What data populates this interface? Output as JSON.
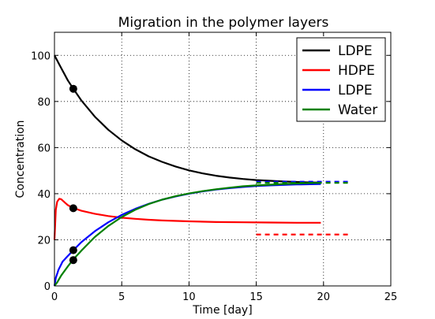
{
  "chart_data": {
    "type": "line",
    "title": "Migration in the polymer layers",
    "xlabel": "Time [day]",
    "ylabel": "Concentration",
    "xlim": [
      0,
      25
    ],
    "ylim": [
      0,
      110
    ],
    "xticks": [
      0,
      5,
      10,
      15,
      20,
      25
    ],
    "yticks": [
      0,
      20,
      40,
      60,
      80,
      100
    ],
    "grid": true,
    "legend_position": "top-right",
    "series": [
      {
        "name": "LDPE",
        "color": "#000000",
        "x": [
          0,
          0.5,
          1,
          1.4,
          2,
          3,
          4,
          5,
          6,
          7,
          8,
          9,
          10,
          11,
          12,
          13,
          14,
          15,
          16,
          17,
          18,
          19,
          19.8
        ],
        "y": [
          100,
          94.5,
          89.1,
          85.5,
          80.4,
          73.4,
          67.7,
          63.1,
          59.3,
          56.2,
          53.8,
          51.8,
          50.1,
          48.8,
          47.8,
          47.0,
          46.4,
          45.9,
          45.6,
          45.3,
          45.1,
          44.9,
          44.8
        ]
      },
      {
        "name": "HDPE",
        "color": "#ff0000",
        "x": [
          0,
          0.1,
          0.2,
          0.35,
          0.5,
          0.8,
          1,
          1.4,
          2,
          3,
          4,
          5,
          6,
          7,
          8,
          10,
          12,
          14,
          16,
          18,
          19.8
        ],
        "y": [
          20,
          33,
          36.5,
          37.8,
          37.6,
          36.0,
          35.0,
          33.8,
          32.6,
          31.3,
          30.3,
          29.6,
          29.1,
          28.7,
          28.4,
          28.0,
          27.7,
          27.6,
          27.5,
          27.4,
          27.4
        ]
      },
      {
        "name": "LDPE",
        "color": "#0000ff",
        "x": [
          0,
          0.1,
          0.3,
          0.6,
          1,
          1.4,
          2,
          3,
          4,
          5,
          6,
          7,
          8,
          9,
          10,
          11,
          12,
          13,
          14,
          15,
          16,
          17,
          18,
          19,
          19.8
        ],
        "y": [
          0,
          3.5,
          7.0,
          10.5,
          13.0,
          15.5,
          19.0,
          23.7,
          27.6,
          30.8,
          33.4,
          35.6,
          37.4,
          38.8,
          40.0,
          41.0,
          41.8,
          42.4,
          42.9,
          43.3,
          43.6,
          43.8,
          44.0,
          44.1,
          44.2
        ]
      },
      {
        "name": "Water",
        "color": "#008000",
        "x": [
          0,
          0.2,
          0.5,
          1,
          1.4,
          2,
          3,
          4,
          5,
          6,
          7,
          8,
          9,
          10,
          11,
          12,
          13,
          14,
          15,
          16,
          17,
          18,
          19,
          19.8
        ],
        "y": [
          0,
          1.5,
          4.5,
          8.5,
          11.5,
          15.3,
          21.2,
          26.0,
          29.9,
          33.0,
          35.5,
          37.4,
          38.9,
          40.1,
          41.1,
          41.9,
          42.6,
          43.2,
          43.6,
          43.9,
          44.2,
          44.4,
          44.6,
          44.7
        ]
      }
    ],
    "dashed_lines": [
      {
        "color": "#0000ff",
        "x": [
          15,
          22
        ],
        "y": [
          45.2,
          45.2
        ]
      },
      {
        "color": "#008000",
        "x": [
          15,
          22
        ],
        "y": [
          44.7,
          44.7
        ]
      },
      {
        "color": "#ff0000",
        "x": [
          15,
          22
        ],
        "y": [
          22.3,
          22.3
        ]
      }
    ],
    "markers": [
      {
        "x": 1.4,
        "y": 85.5
      },
      {
        "x": 1.4,
        "y": 33.7
      },
      {
        "x": 1.4,
        "y": 15.5
      },
      {
        "x": 1.4,
        "y": 11.2
      }
    ]
  }
}
